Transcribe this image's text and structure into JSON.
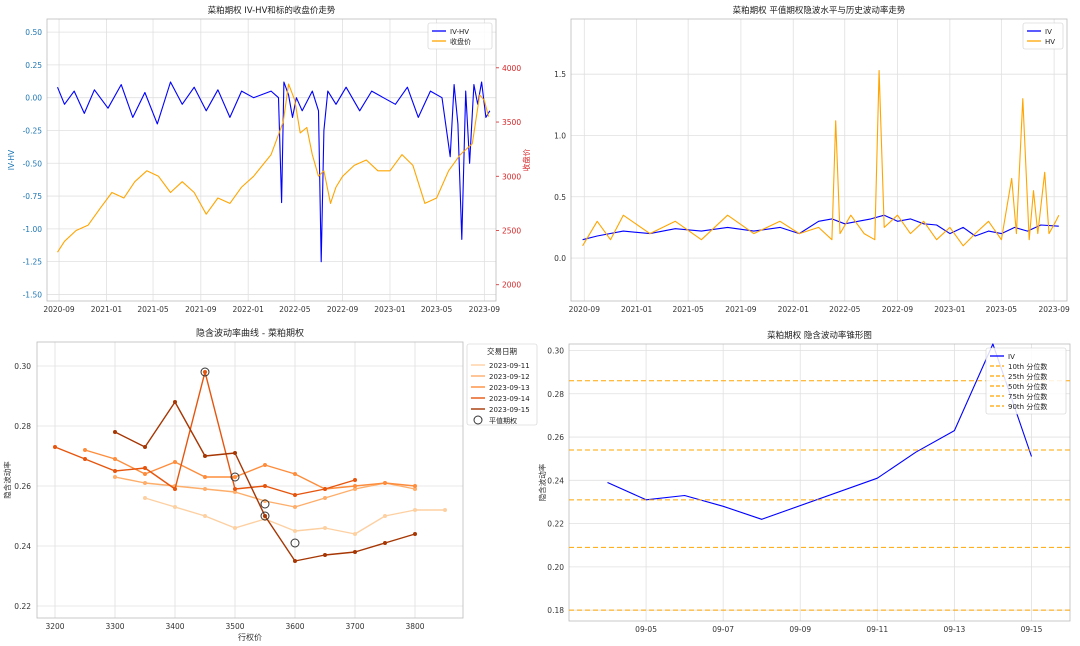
{
  "chart_data": [
    {
      "type": "line",
      "title": "菜粕期权 IV-HV和标的收盘价走势",
      "ylabel": "IV-HV",
      "y2label": "收盘价",
      "grid": true,
      "legend_loc": "upper right",
      "x_ticks": [
        "2020-09",
        "2021-01",
        "2021-05",
        "2021-09",
        "2022-01",
        "2022-05",
        "2022-09",
        "2023-01",
        "2023-05",
        "2023-09"
      ],
      "x_range": [
        "2020-08-01",
        "2023-10-01"
      ],
      "y_ticks": [
        "0.50",
        "0.25",
        "0.00",
        "-0.25",
        "-0.50",
        "-0.75",
        "-1.00",
        "-1.25",
        "-1.50"
      ],
      "ylim": [
        -1.55,
        0.6
      ],
      "y2_ticks": [
        "4000",
        "3500",
        "3000",
        "2500",
        "2000"
      ],
      "y2lim": [
        1850,
        4450
      ],
      "colors": {
        "left_axis": "#1f77b4",
        "right_axis": "#d62728"
      },
      "series": [
        {
          "name": "IV-HV",
          "axis": "left",
          "color": "#0000ff",
          "x": [
            "2020-08-28",
            "2020-09-15",
            "2020-10-10",
            "2020-11-05",
            "2020-12-01",
            "2021-01-05",
            "2021-02-08",
            "2021-03-10",
            "2021-04-10",
            "2021-05-12",
            "2021-06-15",
            "2021-07-15",
            "2021-08-15",
            "2021-09-15",
            "2021-10-15",
            "2021-11-15",
            "2021-12-15",
            "2022-01-15",
            "2022-03-01",
            "2022-03-20",
            "2022-03-28",
            "2022-04-03",
            "2022-04-15",
            "2022-04-25",
            "2022-05-05",
            "2022-05-20",
            "2022-06-15",
            "2022-07-01",
            "2022-07-08",
            "2022-07-15",
            "2022-07-25",
            "2022-08-15",
            "2022-09-10",
            "2022-10-15",
            "2022-11-15",
            "2022-12-15",
            "2023-01-15",
            "2023-02-15",
            "2023-03-15",
            "2023-04-15",
            "2023-05-15",
            "2023-06-05",
            "2023-06-15",
            "2023-06-25",
            "2023-07-05",
            "2023-07-15",
            "2023-07-25",
            "2023-08-05",
            "2023-08-15",
            "2023-08-25",
            "2023-09-05",
            "2023-09-15"
          ],
          "y": [
            0.08,
            -0.05,
            0.05,
            -0.12,
            0.06,
            -0.08,
            0.1,
            -0.15,
            0.04,
            -0.2,
            0.12,
            -0.05,
            0.08,
            -0.1,
            0.06,
            -0.15,
            0.05,
            0.0,
            0.05,
            0.0,
            -0.8,
            0.12,
            0.02,
            -0.15,
            0.0,
            -0.1,
            0.05,
            -0.1,
            -1.25,
            -0.25,
            0.05,
            -0.05,
            0.08,
            -0.1,
            0.05,
            0.0,
            -0.05,
            0.08,
            -0.15,
            0.05,
            0.0,
            -0.45,
            0.1,
            -0.2,
            -1.08,
            0.05,
            -0.5,
            0.1,
            -0.05,
            0.12,
            -0.15,
            -0.1
          ]
        },
        {
          "name": "收盘价",
          "axis": "right",
          "color": "#ffa500",
          "x": [
            "2020-08-28",
            "2020-09-15",
            "2020-10-15",
            "2020-11-15",
            "2020-12-15",
            "2021-01-15",
            "2021-02-15",
            "2021-03-15",
            "2021-04-15",
            "2021-05-15",
            "2021-06-15",
            "2021-07-15",
            "2021-08-15",
            "2021-09-15",
            "2021-10-15",
            "2021-11-15",
            "2021-12-15",
            "2022-01-15",
            "2022-03-01",
            "2022-04-01",
            "2022-04-15",
            "2022-05-01",
            "2022-05-15",
            "2022-06-01",
            "2022-06-15",
            "2022-07-01",
            "2022-07-15",
            "2022-08-01",
            "2022-08-15",
            "2022-09-01",
            "2022-10-01",
            "2022-11-01",
            "2022-12-01",
            "2023-01-01",
            "2023-02-01",
            "2023-03-01",
            "2023-04-01",
            "2023-05-01",
            "2023-06-01",
            "2023-07-01",
            "2023-08-01",
            "2023-08-20",
            "2023-09-01",
            "2023-09-12"
          ],
          "y": [
            2300,
            2400,
            2500,
            2550,
            2700,
            2850,
            2800,
            2950,
            3050,
            3000,
            2850,
            2950,
            2850,
            2650,
            2800,
            2750,
            2900,
            3000,
            3200,
            3500,
            3850,
            3700,
            3400,
            3450,
            3200,
            3000,
            3050,
            2750,
            2900,
            3000,
            3100,
            3150,
            3050,
            3050,
            3200,
            3100,
            2750,
            2800,
            3050,
            3200,
            3300,
            3750,
            3700,
            3550
          ]
        }
      ]
    },
    {
      "type": "line",
      "title": "菜粕期权 平值期权隐波水平与历史波动率走势",
      "grid": true,
      "legend_loc": "upper right",
      "x_ticks": [
        "2020-09",
        "2021-01",
        "2021-05",
        "2021-09",
        "2022-01",
        "2022-05",
        "2022-09",
        "2023-01",
        "2023-05",
        "2023-09"
      ],
      "x_range": [
        "2020-08-01",
        "2023-10-01"
      ],
      "y_ticks": [
        "0.0",
        "0.5",
        "1.0",
        "1.5"
      ],
      "ylim": [
        -0.35,
        1.95
      ],
      "series": [
        {
          "name": "IV",
          "color": "#0000ff",
          "x": [
            "2020-08-28",
            "2020-10-01",
            "2020-12-01",
            "2021-02-01",
            "2021-04-01",
            "2021-06-01",
            "2021-08-01",
            "2021-10-01",
            "2021-12-01",
            "2022-01-15",
            "2022-03-01",
            "2022-04-01",
            "2022-05-01",
            "2022-06-01",
            "2022-07-01",
            "2022-08-01",
            "2022-09-01",
            "2022-10-01",
            "2022-11-01",
            "2022-12-01",
            "2023-01-01",
            "2023-02-01",
            "2023-03-01",
            "2023-04-01",
            "2023-05-01",
            "2023-06-01",
            "2023-07-01",
            "2023-08-01",
            "2023-09-12"
          ],
          "y": [
            0.15,
            0.18,
            0.22,
            0.2,
            0.24,
            0.22,
            0.25,
            0.22,
            0.25,
            0.2,
            0.3,
            0.32,
            0.28,
            0.3,
            0.32,
            0.35,
            0.3,
            0.32,
            0.28,
            0.27,
            0.2,
            0.25,
            0.18,
            0.22,
            0.2,
            0.25,
            0.22,
            0.27,
            0.26
          ]
        },
        {
          "name": "HV",
          "color": "#ffa500",
          "x": [
            "2020-08-28",
            "2020-10-01",
            "2020-11-01",
            "2020-12-01",
            "2021-02-01",
            "2021-04-01",
            "2021-06-01",
            "2021-08-01",
            "2021-10-01",
            "2021-12-01",
            "2022-01-15",
            "2022-03-01",
            "2022-04-01",
            "2022-04-10",
            "2022-04-20",
            "2022-05-15",
            "2022-06-15",
            "2022-07-10",
            "2022-07-20",
            "2022-08-01",
            "2022-09-01",
            "2022-10-01",
            "2022-11-01",
            "2022-12-01",
            "2023-01-01",
            "2023-02-01",
            "2023-03-01",
            "2023-04-01",
            "2023-05-01",
            "2023-05-25",
            "2023-06-05",
            "2023-06-20",
            "2023-07-05",
            "2023-07-15",
            "2023-07-25",
            "2023-08-10",
            "2023-08-20",
            "2023-09-05",
            "2023-09-12"
          ],
          "y": [
            0.1,
            0.3,
            0.15,
            0.35,
            0.2,
            0.3,
            0.15,
            0.35,
            0.2,
            0.3,
            0.2,
            0.25,
            0.15,
            1.12,
            0.2,
            0.35,
            0.2,
            0.15,
            1.53,
            0.25,
            0.35,
            0.2,
            0.3,
            0.15,
            0.25,
            0.1,
            0.2,
            0.3,
            0.15,
            0.65,
            0.2,
            1.3,
            0.15,
            0.55,
            0.2,
            0.7,
            0.2,
            0.3,
            0.35
          ]
        }
      ]
    },
    {
      "type": "line",
      "title": "隐含波动率曲线 - 菜粕期权",
      "xlabel": "行权价",
      "ylabel": "隐含波动率",
      "grid": true,
      "legend_title": "交易日期",
      "legend_loc": "outside right",
      "x_ticks": [
        "3200",
        "3300",
        "3400",
        "3500",
        "3600",
        "3700",
        "3800"
      ],
      "xlim": [
        3170,
        3880
      ],
      "y_ticks": [
        "0.30",
        "0.28",
        "0.26",
        "0.24",
        "0.22"
      ],
      "ylim": [
        0.216,
        0.308
      ],
      "series": [
        {
          "name": "2023-09-11",
          "color": "#fdd0a2",
          "x": [
            3350,
            3400,
            3450,
            3500,
            3550,
            3600,
            3650,
            3700,
            3750,
            3800,
            3850
          ],
          "y": [
            0.256,
            0.253,
            0.25,
            0.246,
            0.249,
            0.245,
            0.246,
            0.244,
            0.25,
            0.252,
            0.252
          ]
        },
        {
          "name": "2023-09-12",
          "color": "#fdae6b",
          "x": [
            3300,
            3350,
            3400,
            3450,
            3500,
            3550,
            3600,
            3650,
            3700,
            3750,
            3800
          ],
          "y": [
            0.263,
            0.261,
            0.26,
            0.259,
            0.258,
            0.255,
            0.253,
            0.256,
            0.259,
            0.261,
            0.259
          ]
        },
        {
          "name": "2023-09-13",
          "color": "#fd8d3c",
          "x": [
            3250,
            3300,
            3350,
            3400,
            3450,
            3500,
            3550,
            3600,
            3650,
            3700,
            3750,
            3800
          ],
          "y": [
            0.272,
            0.269,
            0.264,
            0.268,
            0.263,
            0.263,
            0.267,
            0.264,
            0.259,
            0.26,
            0.261,
            0.26
          ]
        },
        {
          "name": "2023-09-14",
          "color": "#e6550d",
          "x": [
            3200,
            3250,
            3300,
            3350,
            3400,
            3450,
            3500,
            3550,
            3600,
            3650,
            3700
          ],
          "y": [
            0.273,
            0.269,
            0.265,
            0.266,
            0.259,
            0.298,
            0.259,
            0.26,
            0.257,
            0.259,
            0.262
          ]
        },
        {
          "name": "2023-09-15",
          "color": "#a63603",
          "x": [
            3300,
            3350,
            3400,
            3450,
            3500,
            3550,
            3600,
            3650,
            3700,
            3750,
            3800
          ],
          "y": [
            0.278,
            0.273,
            0.288,
            0.27,
            0.271,
            0.25,
            0.235,
            0.237,
            0.238,
            0.241,
            0.244
          ]
        }
      ],
      "atm_label": "平值期权",
      "atm_points": [
        {
          "x": 3450,
          "y": 0.298
        },
        {
          "x": 3500,
          "y": 0.263
        },
        {
          "x": 3550,
          "y": 0.254
        },
        {
          "x": 3550,
          "y": 0.25
        },
        {
          "x": 3600,
          "y": 0.241
        }
      ]
    },
    {
      "type": "line",
      "title": "菜粕期权 隐含波动率锥形图",
      "ylabel": "隐含波动率",
      "grid": true,
      "legend_loc": "upper right",
      "x_ticks": [
        "09-05",
        "09-07",
        "09-09",
        "09-11",
        "09-13",
        "09-15"
      ],
      "x_range": [
        "2023-09-03",
        "2023-09-16"
      ],
      "y_ticks": [
        "0.30",
        "0.28",
        "0.26",
        "0.24",
        "0.22",
        "0.20",
        "0.18"
      ],
      "ylim": [
        0.175,
        0.303
      ],
      "series": [
        {
          "name": "IV",
          "color": "#0000ff",
          "x": [
            "2023-09-04",
            "2023-09-05",
            "2023-09-06",
            "2023-09-07",
            "2023-09-08",
            "2023-09-11",
            "2023-09-12",
            "2023-09-13",
            "2023-09-14",
            "2023-09-15"
          ],
          "y": [
            0.239,
            0.231,
            0.233,
            0.228,
            0.222,
            0.241,
            0.253,
            0.263,
            0.303,
            0.251
          ]
        }
      ],
      "percentiles": [
        {
          "name": "10th 分位数",
          "value": 0.18,
          "color": "#ffa500"
        },
        {
          "name": "25th 分位数",
          "value": 0.209,
          "color": "#ffa500"
        },
        {
          "name": "50th 分位数",
          "value": 0.231,
          "color": "#ffa500"
        },
        {
          "name": "75th 分位数",
          "value": 0.254,
          "color": "#ffa500"
        },
        {
          "name": "90th 分位数",
          "value": 0.286,
          "color": "#ffa500"
        }
      ]
    }
  ]
}
